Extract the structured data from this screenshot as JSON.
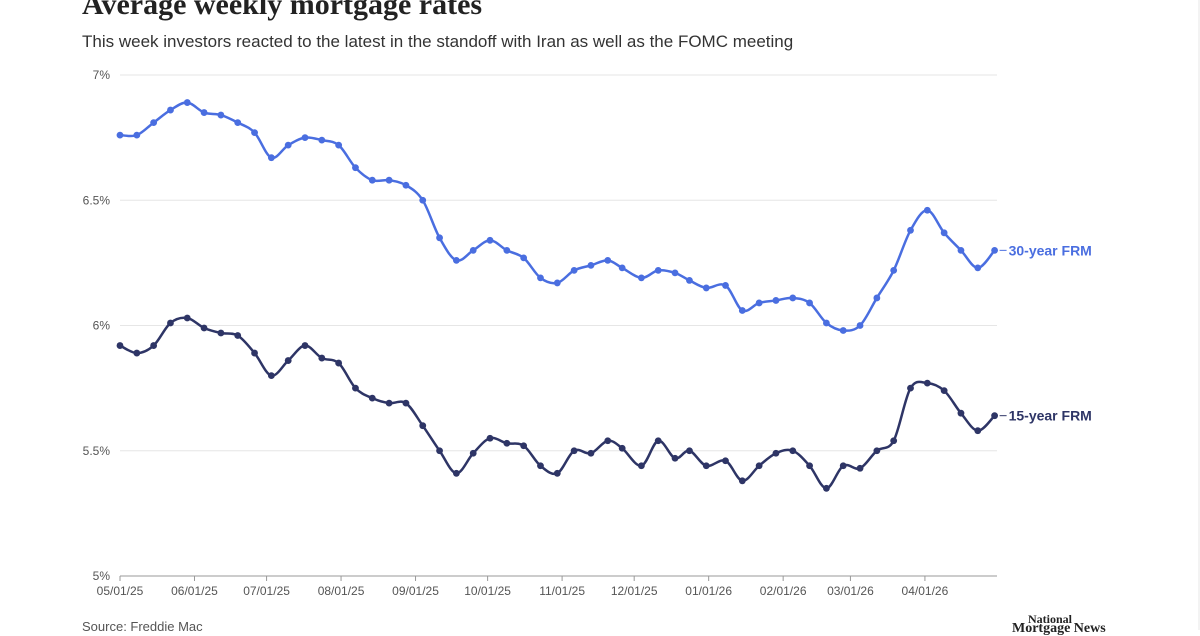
{
  "title": "Average weekly mortgage rates",
  "subtitle": "This week investors reacted to the latest in the standoff with Iran as well as the FOMC meeting",
  "source": "Source: Freddie Mac",
  "logo": {
    "line1": "National",
    "line2": "Mortgage News"
  },
  "colors": {
    "series30": "#4a6ee0",
    "series15": "#2e3566",
    "grid": "#e6e6e6",
    "axis": "#999999",
    "text": "#555555"
  },
  "chart_data": {
    "type": "line",
    "title": "Average weekly mortgage rates",
    "ylim": [
      5,
      7
    ],
    "yticks": [
      5,
      5.5,
      6,
      6.5,
      7
    ],
    "ytick_labels": [
      "5%",
      "5.5%",
      "6%",
      "6.5%",
      "7%"
    ],
    "xlim": [
      "2025-05-01",
      "2026-05-01"
    ],
    "xticks": [
      "2025-05-01",
      "2025-06-01",
      "2025-07-01",
      "2025-08-01",
      "2025-09-01",
      "2025-10-01",
      "2025-11-01",
      "2025-12-01",
      "2026-01-01",
      "2026-02-01",
      "2026-03-01",
      "2026-04-01"
    ],
    "xtick_labels": [
      "05/01/25",
      "06/01/25",
      "07/01/25",
      "08/01/25",
      "09/01/25",
      "10/01/25",
      "11/01/25",
      "12/01/25",
      "01/01/26",
      "02/01/26",
      "03/01/26",
      "04/01/26"
    ],
    "grid": true,
    "x": [
      "2025-05-01",
      "2025-05-08",
      "2025-05-15",
      "2025-05-22",
      "2025-05-29",
      "2025-06-05",
      "2025-06-12",
      "2025-06-19",
      "2025-06-26",
      "2025-07-03",
      "2025-07-10",
      "2025-07-17",
      "2025-07-24",
      "2025-07-31",
      "2025-08-07",
      "2025-08-14",
      "2025-08-21",
      "2025-08-28",
      "2025-09-04",
      "2025-09-11",
      "2025-09-18",
      "2025-09-25",
      "2025-10-02",
      "2025-10-09",
      "2025-10-16",
      "2025-10-23",
      "2025-10-30",
      "2025-11-06",
      "2025-11-13",
      "2025-11-20",
      "2025-11-26",
      "2025-12-04",
      "2025-12-11",
      "2025-12-18",
      "2025-12-24",
      "2025-12-31",
      "2026-01-08",
      "2026-01-15",
      "2026-01-22",
      "2026-01-29",
      "2026-02-05",
      "2026-02-12",
      "2026-02-19",
      "2026-02-26",
      "2026-03-05",
      "2026-03-12",
      "2026-03-19",
      "2026-03-26",
      "2026-04-02",
      "2026-04-09",
      "2026-04-16",
      "2026-04-23",
      "2026-04-30"
    ],
    "series": [
      {
        "name": "30-year FRM",
        "label": "30-year FRM",
        "color": "#4a6ee0",
        "values": [
          6.76,
          6.76,
          6.81,
          6.86,
          6.89,
          6.85,
          6.84,
          6.81,
          6.77,
          6.67,
          6.72,
          6.75,
          6.74,
          6.72,
          6.63,
          6.58,
          6.58,
          6.56,
          6.5,
          6.35,
          6.26,
          6.3,
          6.34,
          6.3,
          6.27,
          6.19,
          6.17,
          6.22,
          6.24,
          6.26,
          6.23,
          6.19,
          6.22,
          6.21,
          6.18,
          6.15,
          6.16,
          6.06,
          6.09,
          6.1,
          6.11,
          6.09,
          6.01,
          5.98,
          6.0,
          6.11,
          6.22,
          6.38,
          6.46,
          6.37,
          6.3,
          6.23,
          6.3
        ]
      },
      {
        "name": "15-year FRM",
        "label": "15-year FRM",
        "color": "#2e3566",
        "values": [
          5.92,
          5.89,
          5.92,
          6.01,
          6.03,
          5.99,
          5.97,
          5.96,
          5.89,
          5.8,
          5.86,
          5.92,
          5.87,
          5.85,
          5.75,
          5.71,
          5.69,
          5.69,
          5.6,
          5.5,
          5.41,
          5.49,
          5.55,
          5.53,
          5.52,
          5.44,
          5.41,
          5.5,
          5.49,
          5.54,
          5.51,
          5.44,
          5.54,
          5.47,
          5.5,
          5.44,
          5.46,
          5.38,
          5.44,
          5.49,
          5.5,
          5.44,
          5.35,
          5.44,
          5.43,
          5.5,
          5.54,
          5.75,
          5.77,
          5.74,
          5.65,
          5.58,
          5.64
        ]
      }
    ]
  }
}
